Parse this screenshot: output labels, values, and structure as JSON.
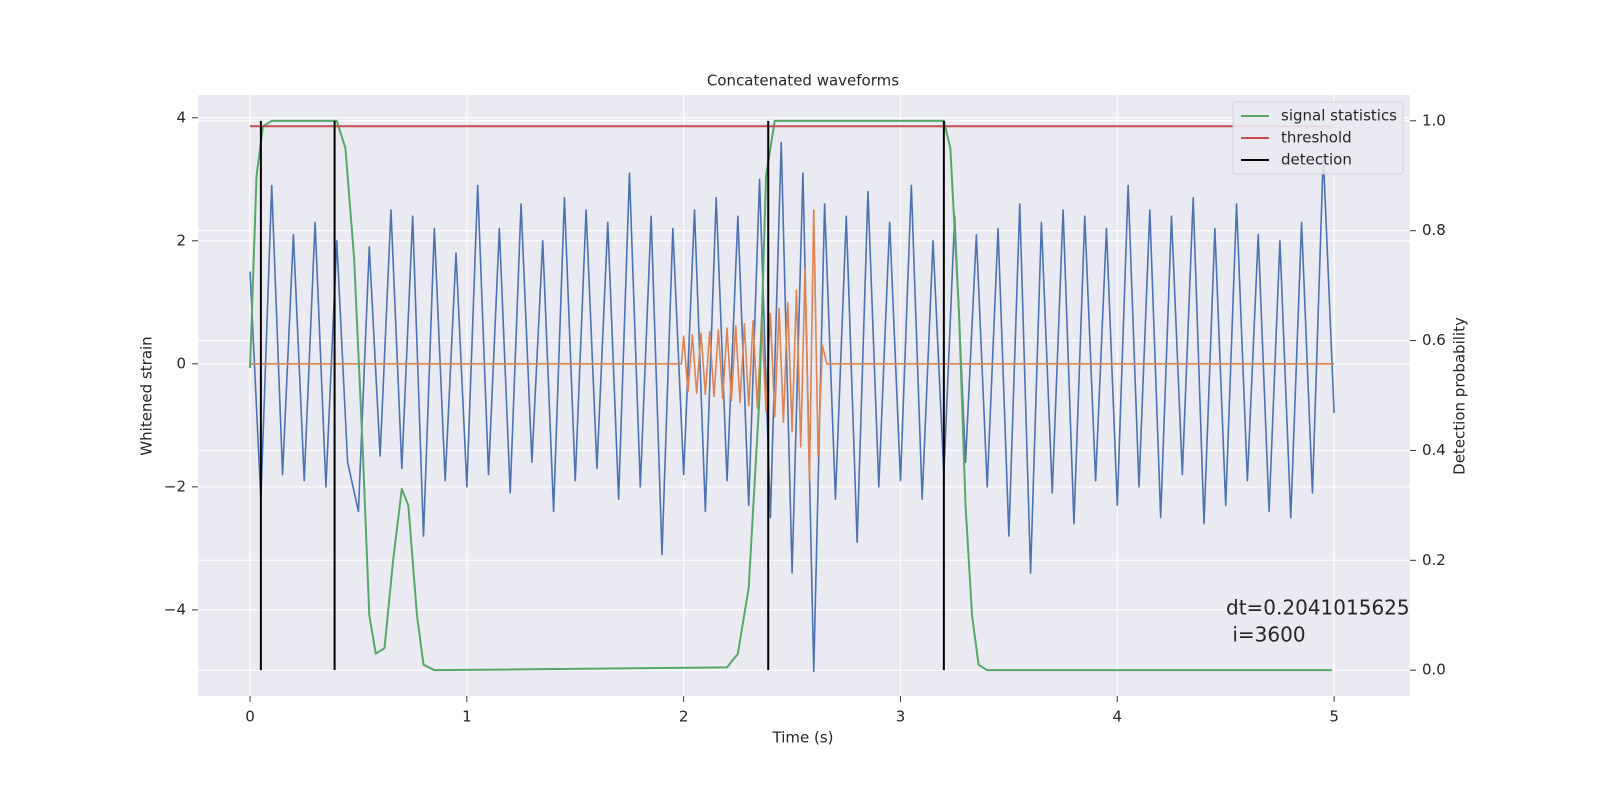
{
  "chart_data": {
    "type": "line",
    "title": "Concatenated waveforms",
    "x_label": "Time (s)",
    "y_label": "Whitened strain",
    "y2_label": "Detection probability",
    "xlim": [
      -0.24,
      5.35
    ],
    "xticks": [
      0,
      1,
      2,
      3,
      4,
      5
    ],
    "ylim": [
      -5.4,
      4.37
    ],
    "yticks": [
      {
        "value": -4,
        "label": "−4"
      },
      {
        "value": -2,
        "label": "−2"
      },
      0,
      2,
      4
    ],
    "y2lim": [
      -0.047,
      1.047
    ],
    "y2ticks": [
      {
        "value": 0,
        "label": "0.0"
      },
      0.2,
      0.4,
      0.6,
      0.8,
      {
        "value": 1,
        "label": "1.0"
      }
    ],
    "grid": true,
    "legend": "upper right",
    "annotation": [
      "dt=0.2041015625",
      " i=3600"
    ],
    "series": [
      {
        "name": null,
        "color": "#4c72b0",
        "axis": "y",
        "x": [
          0,
          0.05,
          0.1,
          0.15,
          0.2,
          0.25,
          0.3,
          0.35,
          0.4,
          0.45,
          0.5,
          0.55,
          0.6,
          0.65,
          0.7,
          0.75,
          0.8,
          0.85,
          0.9,
          0.95,
          1,
          1.05,
          1.1,
          1.15,
          1.2,
          1.25,
          1.3,
          1.35,
          1.4,
          1.45,
          1.5,
          1.55,
          1.6,
          1.65,
          1.7,
          1.75,
          1.8,
          1.85,
          1.9,
          1.95,
          2,
          2.05,
          2.1,
          2.15,
          2.2,
          2.25,
          2.3,
          2.35,
          2.4,
          2.45,
          2.5,
          2.55,
          2.6,
          2.65,
          2.7,
          2.75,
          2.8,
          2.85,
          2.9,
          2.95,
          3,
          3.05,
          3.1,
          3.15,
          3.2,
          3.25,
          3.3,
          3.35,
          3.4,
          3.45,
          3.5,
          3.55,
          3.6,
          3.65,
          3.7,
          3.75,
          3.8,
          3.85,
          3.9,
          3.95,
          4,
          4.05,
          4.1,
          4.15,
          4.2,
          4.25,
          4.3,
          4.35,
          4.4,
          4.45,
          4.5,
          4.55,
          4.6,
          4.65,
          4.7,
          4.75,
          4.8,
          4.85,
          4.9,
          4.95,
          5
        ],
        "values": [
          1.5,
          -2.2,
          2.9,
          -1.8,
          2.1,
          -1.9,
          2.3,
          -2.0,
          2.0,
          -1.6,
          -2.4,
          1.9,
          -1.5,
          2.5,
          -1.7,
          2.4,
          -2.8,
          2.2,
          -1.9,
          1.8,
          -2.0,
          2.9,
          -1.8,
          2.2,
          -2.1,
          2.6,
          -1.6,
          2.0,
          -2.4,
          2.7,
          -1.9,
          2.5,
          -1.7,
          2.3,
          -2.2,
          3.1,
          -2.0,
          2.4,
          -3.1,
          2.2,
          -1.8,
          2.5,
          -2.4,
          2.7,
          -1.9,
          2.4,
          -2.3,
          3.0,
          -2.5,
          3.6,
          -3.4,
          3.1,
          -5.0,
          2.6,
          -2.2,
          2.4,
          -2.9,
          2.8,
          -2.0,
          2.3,
          -1.9,
          2.9,
          -2.2,
          2.0,
          -1.8,
          2.4,
          -1.6,
          2.1,
          -2.0,
          2.2,
          -2.8,
          2.6,
          -3.4,
          2.3,
          -2.1,
          2.5,
          -2.6,
          2.4,
          -1.9,
          2.2,
          -2.3,
          2.9,
          -2.0,
          2.5,
          -2.5,
          2.4,
          -1.8,
          2.7,
          -2.6,
          2.2,
          -2.3,
          2.6,
          -1.9,
          2.1,
          -2.4,
          2.0,
          -2.5,
          2.3,
          -2.1,
          3.4,
          -0.8
        ]
      },
      {
        "name": null,
        "color": "#dd8452",
        "axis": "y",
        "x": [
          0,
          1.99,
          2,
          2.02,
          2.04,
          2.06,
          2.08,
          2.1,
          2.12,
          2.14,
          2.16,
          2.18,
          2.2,
          2.22,
          2.24,
          2.26,
          2.28,
          2.3,
          2.32,
          2.34,
          2.36,
          2.38,
          2.4,
          2.42,
          2.44,
          2.46,
          2.48,
          2.5,
          2.52,
          2.54,
          2.56,
          2.58,
          2.6,
          2.62,
          2.64,
          2.66,
          5
        ],
        "values": [
          0,
          0,
          0.45,
          -0.45,
          0.47,
          -0.48,
          0.5,
          -0.5,
          0.52,
          -0.53,
          0.55,
          -0.56,
          0.58,
          -0.6,
          0.62,
          -0.63,
          0.65,
          -0.68,
          0.7,
          -0.72,
          0.75,
          -0.78,
          0.82,
          -0.86,
          0.9,
          -0.95,
          1.0,
          -1.1,
          1.2,
          -1.35,
          1.55,
          -1.9,
          2.5,
          -1.5,
          0.3,
          0,
          0
        ]
      },
      {
        "name": "signal statistics",
        "color": "#55a868",
        "axis": "y2",
        "x": [
          0,
          0.03,
          0.06,
          0.1,
          0.4,
          0.44,
          0.48,
          0.52,
          0.55,
          0.58,
          0.62,
          0.66,
          0.7,
          0.73,
          0.77,
          0.8,
          0.85,
          2.2,
          2.25,
          2.3,
          2.35,
          2.38,
          2.42,
          3.2,
          3.23,
          3.27,
          3.3,
          3.33,
          3.36,
          3.4,
          4.99
        ],
        "values": [
          0.55,
          0.9,
          0.99,
          1.0,
          1.0,
          0.95,
          0.75,
          0.4,
          0.1,
          0.03,
          0.04,
          0.2,
          0.33,
          0.3,
          0.1,
          0.01,
          0,
          0.005,
          0.03,
          0.15,
          0.5,
          0.9,
          1.0,
          1.0,
          0.95,
          0.65,
          0.3,
          0.1,
          0.01,
          0,
          0
        ]
      },
      {
        "name": "threshold",
        "color": "#c44e52",
        "axis": "y2",
        "x": [
          0,
          4.99
        ],
        "values": [
          0.99,
          0.99
        ]
      },
      {
        "name": "detection",
        "color": "#000000",
        "axis": "y2",
        "x": [
          0.05,
          0.05,
          null,
          0.39,
          0.39,
          null,
          2.39,
          2.39,
          null,
          3.2,
          3.2
        ],
        "values": [
          0,
          1,
          null,
          1,
          0,
          null,
          0,
          1,
          null,
          1,
          0
        ]
      }
    ]
  }
}
